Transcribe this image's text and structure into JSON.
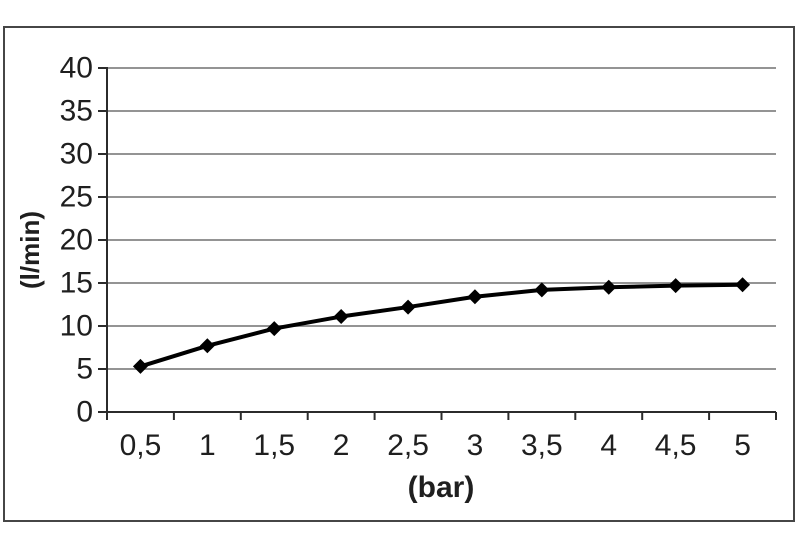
{
  "frame": {
    "border_color": "#464646",
    "background": "#ffffff"
  },
  "chart_data": {
    "type": "line",
    "title": "",
    "xlabel": "(bar)",
    "ylabel": "(l/min)",
    "categories": [
      "0,5",
      "1",
      "1,5",
      "2",
      "2,5",
      "3",
      "3,5",
      "4",
      "4,5",
      "5"
    ],
    "x_values": [
      0.5,
      1,
      1.5,
      2,
      2.5,
      3,
      3.5,
      4,
      4.5,
      5
    ],
    "values": [
      5.3,
      7.7,
      9.7,
      11.1,
      12.2,
      13.4,
      14.2,
      14.5,
      14.7,
      14.8
    ],
    "ylim": [
      0,
      40
    ],
    "yticks": [
      0,
      5,
      10,
      15,
      20,
      25,
      30,
      35,
      40
    ],
    "grid": "horizontal",
    "legend": "none",
    "marker": "diamond",
    "line_color": "#000000",
    "marker_color": "#000000",
    "grid_color": "#858585",
    "axis_color": "#2b2b2b",
    "text_color": "#1f1f1f"
  }
}
